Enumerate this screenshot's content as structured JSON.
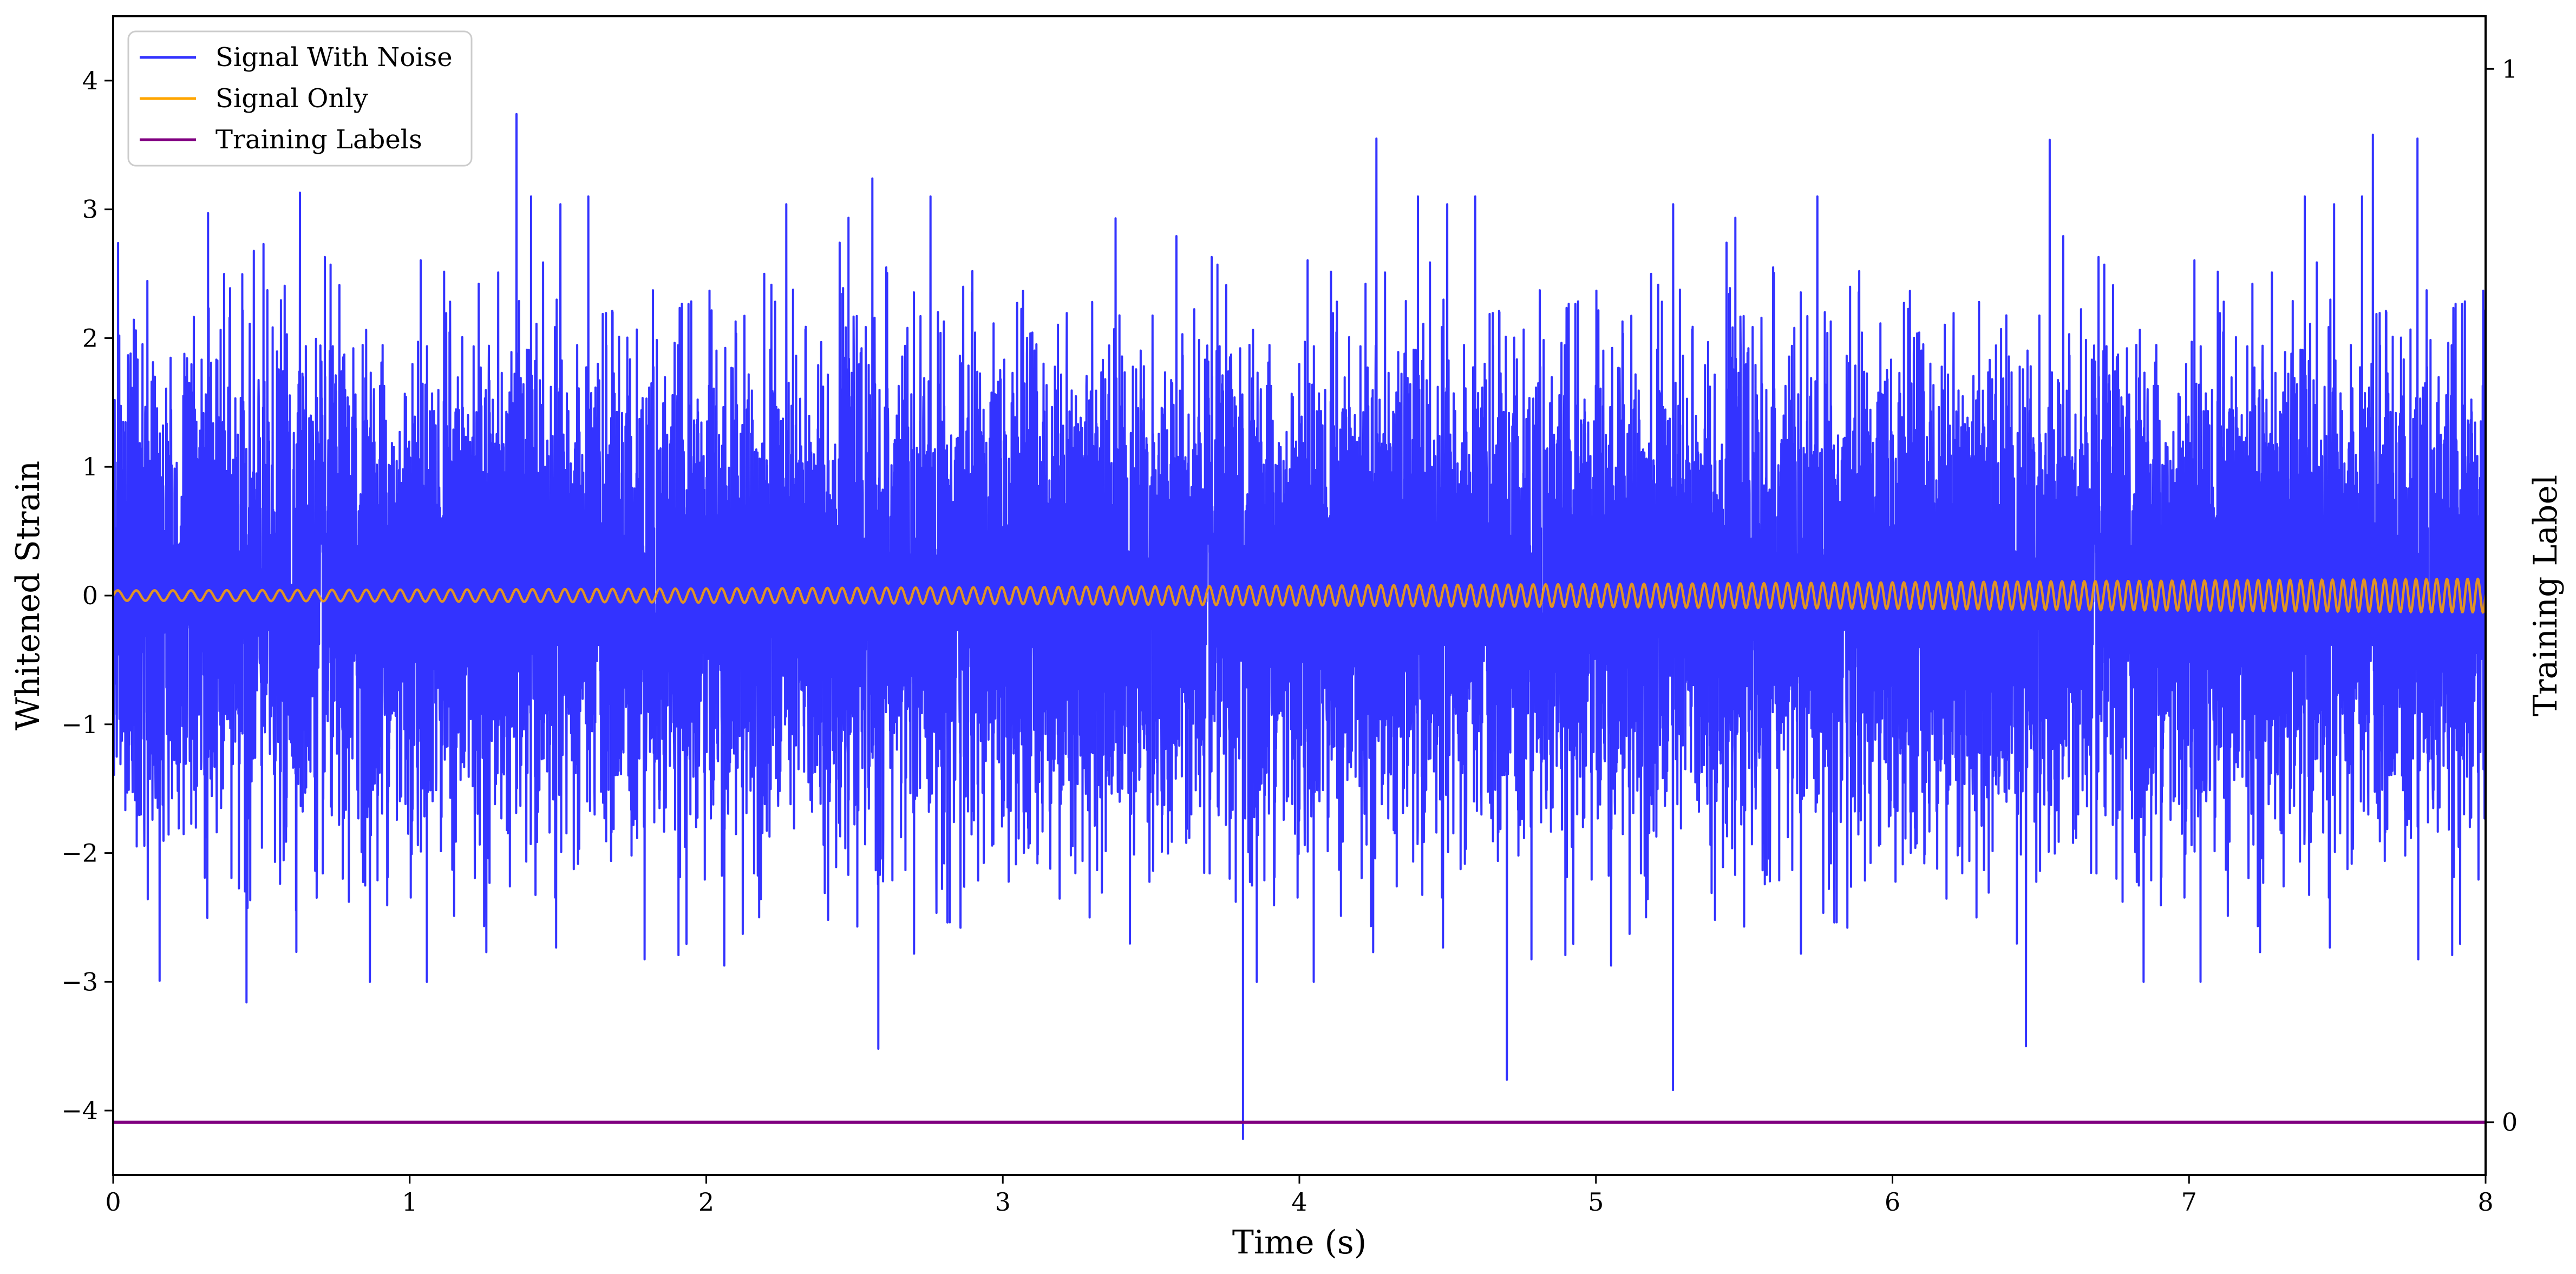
{
  "chart_data": {
    "type": "line",
    "title": "",
    "xlabel": "Time (s)",
    "ylabel": "Whitened Strain",
    "ylabel_right": "Training Label",
    "xlim": [
      0,
      8
    ],
    "ylim": [
      -4.5,
      4.5
    ],
    "ylim_right": [
      -0.05,
      1.05
    ],
    "x_ticks": [
      0,
      1,
      2,
      3,
      4,
      5,
      6,
      7,
      8
    ],
    "x_tick_labels": [
      "0",
      "1",
      "2",
      "3",
      "4",
      "5",
      "6",
      "7",
      "8"
    ],
    "y_ticks": [
      -4,
      -3,
      -2,
      -1,
      0,
      1,
      2,
      3,
      4
    ],
    "y_tick_labels": [
      "−4",
      "−3",
      "−2",
      "−1",
      "0",
      "1",
      "2",
      "3",
      "4"
    ],
    "y_right_ticks": [
      0,
      1
    ],
    "y_right_tick_labels": [
      "0",
      "1"
    ],
    "grid": false,
    "legend_position": "top-left",
    "series": [
      {
        "name": "Signal With Noise",
        "color": "#3333ff",
        "axis": "left",
        "description": "dense noisy whitened strain, roughly Gaussian, mostly within -2.5..3, with peaks",
        "peaks": [
          {
            "x": 0.32,
            "y": 2.97
          },
          {
            "x": 0.63,
            "y": 3.13
          },
          {
            "x": 1.36,
            "y": 3.74
          },
          {
            "x": 2.56,
            "y": 3.24
          },
          {
            "x": 3.38,
            "y": 2.93
          },
          {
            "x": 4.26,
            "y": 3.55
          },
          {
            "x": 6.53,
            "y": 3.54
          },
          {
            "x": 7.62,
            "y": 3.58
          },
          {
            "x": 7.77,
            "y": 3.55
          },
          {
            "x": 0.45,
            "y": -3.16
          },
          {
            "x": 2.58,
            "y": -3.52
          },
          {
            "x": 3.81,
            "y": -4.22
          },
          {
            "x": 4.7,
            "y": -3.76
          },
          {
            "x": 5.26,
            "y": -3.84
          },
          {
            "x": 6.45,
            "y": -3.5
          },
          {
            "x": 5.3,
            "y": -0.2
          }
        ]
      },
      {
        "name": "Signal Only",
        "color": "#ffa500",
        "axis": "left",
        "description": "chirp with slowly increasing amplitude and frequency",
        "amplitude_start": 0.04,
        "amplitude_end": 0.13,
        "cycles_per_second_start": 16,
        "cycles_per_second_end": 29
      },
      {
        "name": "Training Labels",
        "color": "#800080",
        "axis": "right",
        "x": [
          0,
          8
        ],
        "y": [
          0,
          0
        ]
      }
    ]
  }
}
